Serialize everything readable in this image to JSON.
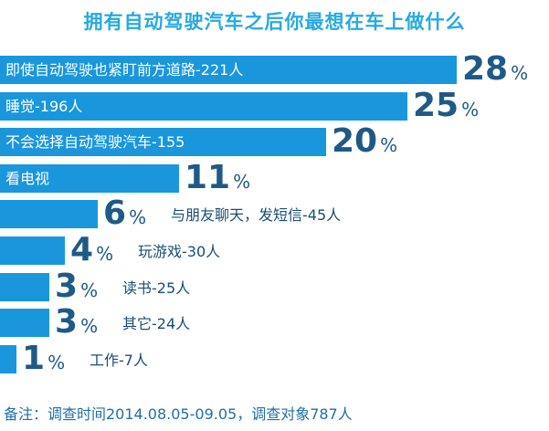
{
  "chart_data": {
    "type": "bar",
    "orientation": "horizontal",
    "title": "拥有自动驾驶汽车之后你最想在车上做什么",
    "categories": [
      "即使自动驾驶也紧盯前方道路-221人",
      "睡觉-196人",
      "不会选择自动驾驶汽车-155",
      "看电视",
      "与朋友聊天，发短信-45人",
      "玩游戏-30人",
      "读书-25人",
      "其它-24人",
      "工作-7人"
    ],
    "values": [
      28,
      25,
      20,
      11,
      6,
      4,
      3,
      3,
      1
    ],
    "value_suffix": "%",
    "xlim": [
      0,
      28
    ],
    "bar_color": "#1a96dd"
  },
  "footnote": "备注：调查时间2014.08.05-09.05，调查对象787人"
}
